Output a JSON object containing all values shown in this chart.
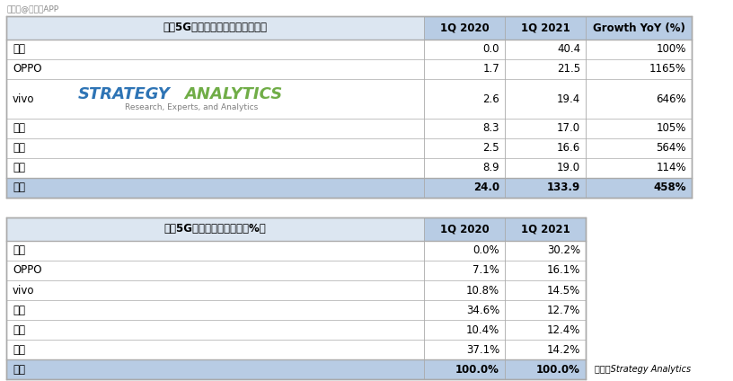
{
  "watermark": "搜狐号@爱集微APP",
  "table1": {
    "title": "全球5G智能手机出货量（百万部）",
    "col_headers": [
      "1Q 2020",
      "1Q 2021",
      "Growth YoY (%)"
    ],
    "rows": [
      [
        "苹果",
        "0.0",
        "40.4",
        "100%"
      ],
      [
        "OPPO",
        "1.7",
        "21.5",
        "1165%"
      ],
      [
        "vivo",
        "2.6",
        "19.4",
        "646%"
      ],
      [
        "三星",
        "8.3",
        "17.0",
        "105%"
      ],
      [
        "小米",
        "2.5",
        "16.6",
        "564%"
      ],
      [
        "其它",
        "8.9",
        "19.0",
        "114%"
      ],
      [
        "总计",
        "24.0",
        "133.9",
        "458%"
      ]
    ],
    "total_row_idx": 6,
    "vivo_row_idx": 2
  },
  "table2": {
    "title": "全球5G智能手机市场份额（%）",
    "col_headers": [
      "1Q 2020",
      "1Q 2021"
    ],
    "rows": [
      [
        "苹果",
        "0.0%",
        "30.2%"
      ],
      [
        "OPPO",
        "7.1%",
        "16.1%"
      ],
      [
        "vivo",
        "10.8%",
        "14.5%"
      ],
      [
        "三星",
        "34.6%",
        "12.7%"
      ],
      [
        "小米",
        "10.4%",
        "12.4%"
      ],
      [
        "其它",
        "37.1%",
        "14.2%"
      ],
      [
        "总计",
        "100.0%",
        "100.0%"
      ]
    ],
    "total_row_idx": 6
  },
  "logo_strategy_color": "#2e74b5",
  "logo_analytics_color": "#70ad47",
  "logo_subtitle_color": "#7f7f7f",
  "logo_text2": "Research, Experts, and Analytics",
  "source_text": "来源：Strategy Analytics",
  "header_bg": "#b8cce4",
  "total_bg": "#b8cce4",
  "title_header_bg": "#dce6f1",
  "border_color": "#aaaaaa",
  "bg_color": "#ffffff",
  "watermark_color": "#888888"
}
